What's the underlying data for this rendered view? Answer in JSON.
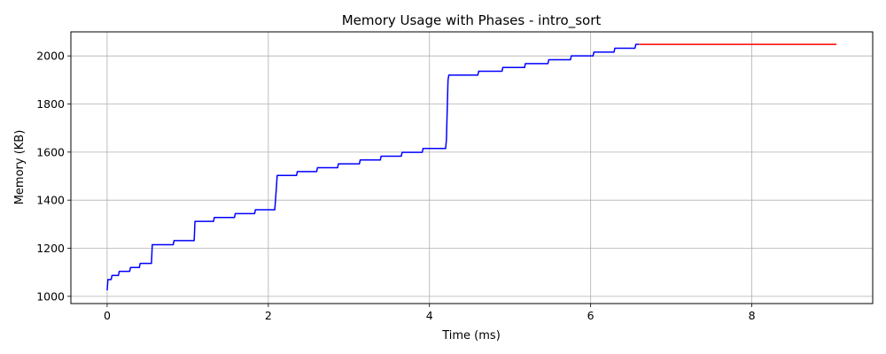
{
  "chart_data": {
    "type": "line",
    "title": "Memory Usage with Phases - intro_sort",
    "xlabel": "Time (ms)",
    "ylabel": "Memory (KB)",
    "xlim": [
      -0.45,
      9.5
    ],
    "ylim": [
      970,
      2100
    ],
    "xticks": [
      0,
      2,
      4,
      6,
      8
    ],
    "yticks": [
      1000,
      1200,
      1400,
      1600,
      1800,
      2000
    ],
    "grid": true,
    "series": [
      {
        "color": "#0000ff",
        "x": [
          0,
          0.01,
          0.05,
          0.06,
          0.14,
          0.15,
          0.28,
          0.29,
          0.4,
          0.41,
          0.55,
          0.56,
          0.82,
          0.83,
          1.08,
          1.09,
          1.32,
          1.33,
          1.58,
          1.59,
          1.83,
          1.84,
          2.08,
          2.1,
          2.11,
          2.35,
          2.36,
          2.6,
          2.61,
          2.86,
          2.87,
          3.13,
          3.14,
          3.39,
          3.4,
          3.65,
          3.66,
          3.91,
          3.92,
          4.2,
          4.21,
          4.23,
          4.24,
          4.6,
          4.61,
          4.9,
          4.91,
          5.18,
          5.19,
          5.47,
          5.48,
          5.75,
          5.76,
          6.03,
          6.04,
          6.29,
          6.3,
          6.55,
          6.56,
          6.6
        ],
        "y": [
          1025,
          1070,
          1070,
          1087,
          1087,
          1104,
          1104,
          1120,
          1120,
          1137,
          1137,
          1215,
          1215,
          1232,
          1232,
          1312,
          1312,
          1328,
          1328,
          1344,
          1344,
          1360,
          1360,
          1450,
          1503,
          1503,
          1519,
          1519,
          1535,
          1535,
          1551,
          1551,
          1567,
          1567,
          1583,
          1583,
          1599,
          1599,
          1615,
          1615,
          1650,
          1900,
          1920,
          1920,
          1936,
          1936,
          1952,
          1952,
          1968,
          1968,
          1984,
          1984,
          2000,
          2000,
          2016,
          2016,
          2032,
          2032,
          2048,
          2048
        ]
      },
      {
        "color": "#ff0000",
        "x": [
          6.6,
          9.05
        ],
        "y": [
          2048,
          2048
        ]
      }
    ]
  }
}
